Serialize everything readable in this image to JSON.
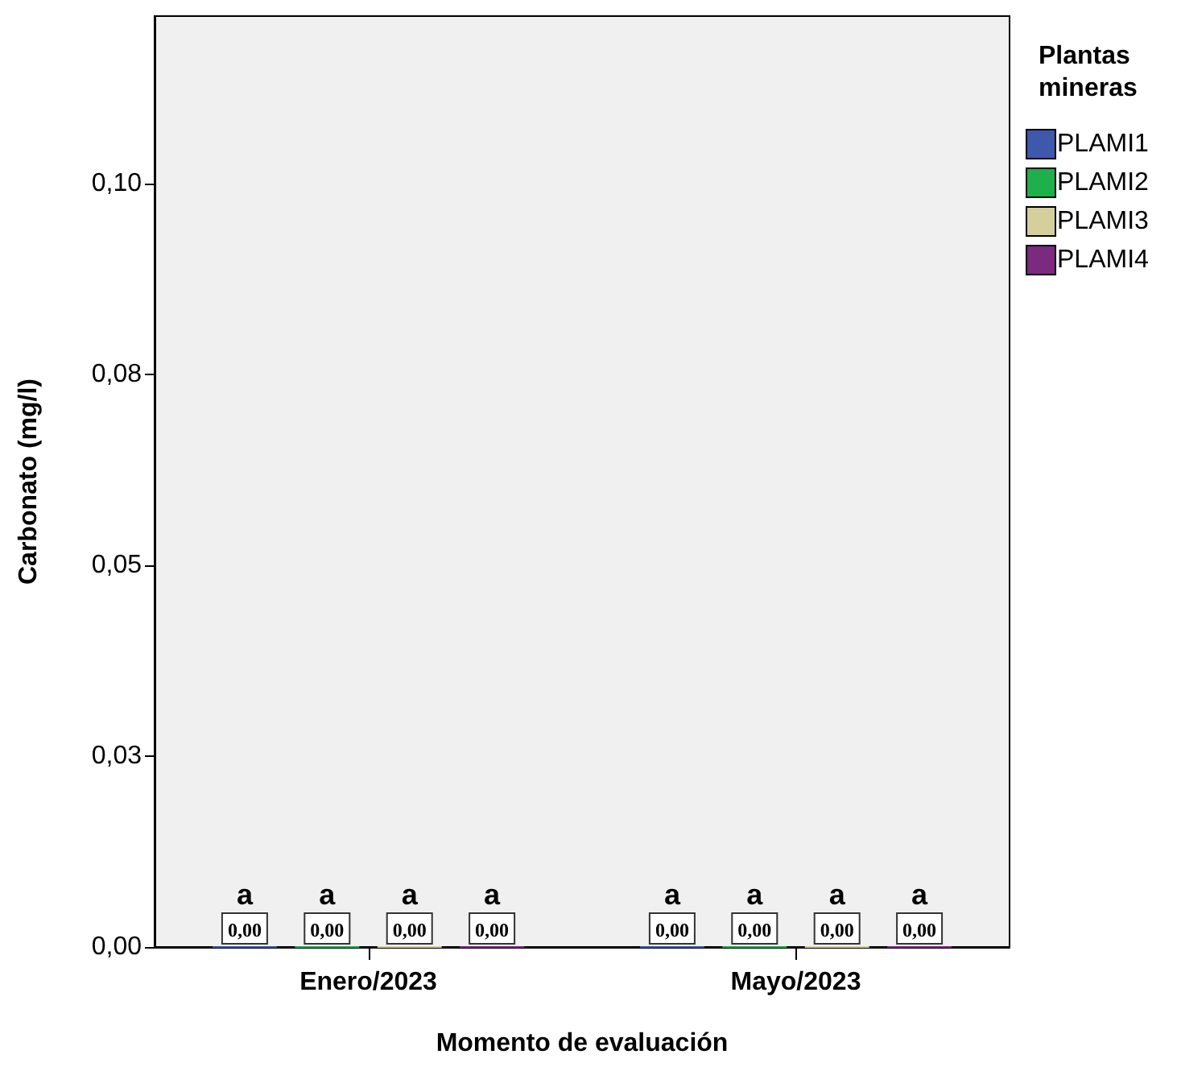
{
  "chart_data": {
    "type": "bar",
    "xlabel": "Momento de evaluación",
    "ylabel": "Carbonato (mg/l)",
    "legend_title": "Plantas mineras",
    "legend": "top right",
    "grid": false,
    "categories": [
      "Enero/2023",
      "Mayo/2023"
    ],
    "series": [
      {
        "name": "PLAMI1",
        "color": "#3e58ac",
        "values": [
          0,
          0
        ],
        "value_labels": [
          "0,00",
          "0,00"
        ]
      },
      {
        "name": "PLAMI2",
        "color": "#1fb04b",
        "values": [
          0,
          0
        ],
        "value_labels": [
          "0,00",
          "0,00"
        ]
      },
      {
        "name": "PLAMI3",
        "color": "#d5cf9b",
        "values": [
          0,
          0
        ],
        "value_labels": [
          "0,00",
          "0,00"
        ]
      },
      {
        "name": "PLAMI4",
        "color": "#7b2a80",
        "values": [
          0,
          0
        ],
        "value_labels": [
          "0,00",
          "0,00"
        ]
      }
    ],
    "annotations": [
      "a",
      "a",
      "a",
      "a",
      "a",
      "a",
      "a",
      "a"
    ],
    "ylim": [
      0,
      0.122
    ],
    "yticks": [
      {
        "value": 0,
        "label": "0,00"
      },
      {
        "value": 0.025,
        "label": "0,03"
      },
      {
        "value": 0.05,
        "label": "0,05"
      },
      {
        "value": 0.075,
        "label": "0,08"
      },
      {
        "value": 0.1,
        "label": "0,10"
      }
    ]
  }
}
